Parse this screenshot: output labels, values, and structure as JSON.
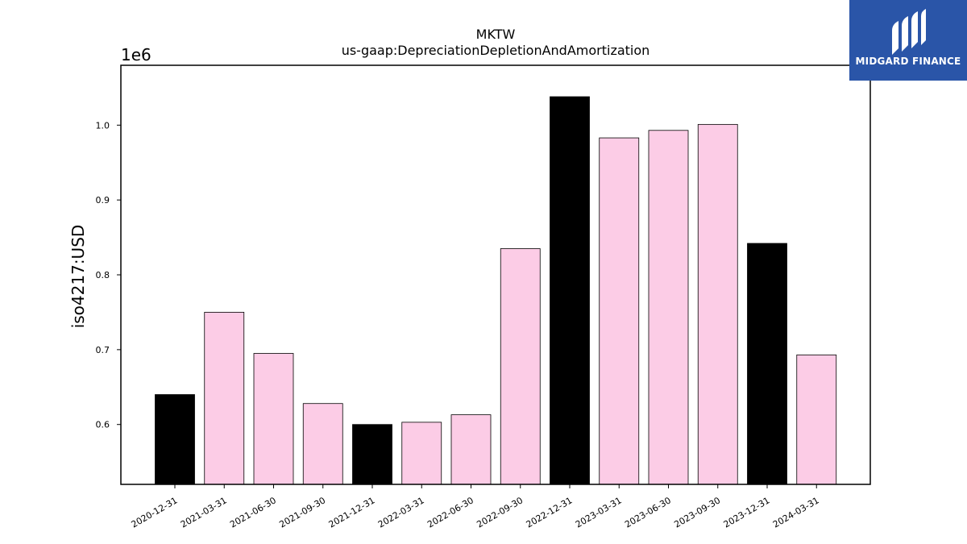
{
  "brand": {
    "name": "MIDGARD FINANCE",
    "color": "#2a55a8",
    "icon": "midgard-logo-icon"
  },
  "chart_data": {
    "type": "bar",
    "title": "MKTW",
    "subtitle": "us-gaap:DepreciationDepletionAndAmortization",
    "xlabel": "",
    "ylabel": "iso4217:USD",
    "y_offset_label": "1e6",
    "ylim": [
      520000,
      1080000
    ],
    "yticks": [
      600000,
      700000,
      800000,
      900000,
      1000000
    ],
    "ytick_labels": [
      "0.6",
      "0.7",
      "0.8",
      "0.9",
      "1.0"
    ],
    "grid": false,
    "categories": [
      "2020-12-31",
      "2021-03-31",
      "2021-06-30",
      "2021-09-30",
      "2021-12-31",
      "2022-03-31",
      "2022-06-30",
      "2022-09-30",
      "2022-12-31",
      "2023-03-31",
      "2023-06-30",
      "2023-09-30",
      "2023-12-31",
      "2024-03-31"
    ],
    "values": [
      640000,
      750000,
      695000,
      628000,
      600000,
      603000,
      613000,
      835000,
      1038000,
      983000,
      993000,
      1001000,
      842000,
      693000
    ],
    "bar_colors": [
      "#000000",
      "#fccce6",
      "#fccce6",
      "#fccce6",
      "#000000",
      "#fccce6",
      "#fccce6",
      "#fccce6",
      "#000000",
      "#fccce6",
      "#fccce6",
      "#fccce6",
      "#000000",
      "#fccce6"
    ]
  }
}
